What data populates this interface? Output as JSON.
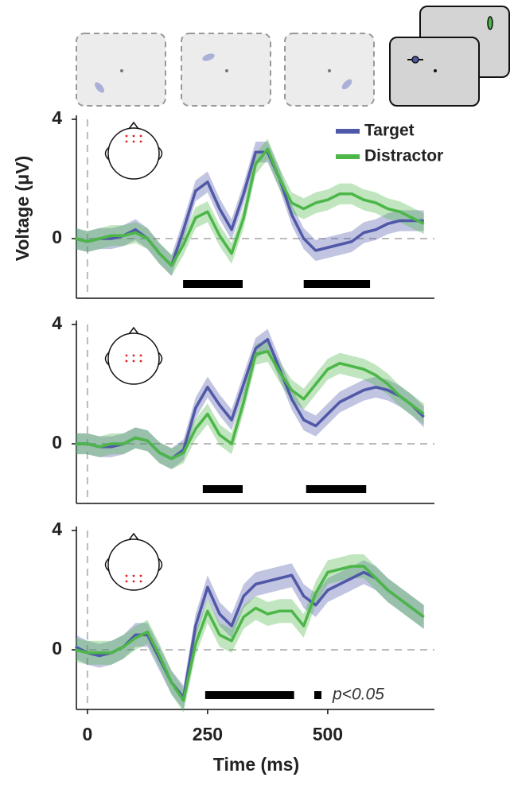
{
  "chart_data": [
    {
      "type": "line",
      "ylabel": "Voltage (μV)",
      "legend": "upper right",
      "xlim": [
        -23,
        722
      ],
      "ylim": [
        -2,
        4
      ],
      "yticks": [
        0,
        4
      ],
      "x": [
        -25,
        0,
        25,
        50,
        75,
        100,
        125,
        150,
        175,
        200,
        225,
        250,
        275,
        300,
        325,
        350,
        375,
        400,
        425,
        450,
        475,
        500,
        525,
        550,
        575,
        600,
        625,
        650,
        675,
        700
      ],
      "series": [
        {
          "name": "Target",
          "color": "#5058a8",
          "error": 0.35,
          "values": [
            0,
            -0.1,
            0,
            0,
            0.1,
            0.3,
            0,
            -0.5,
            -0.9,
            0.3,
            1.6,
            1.9,
            1.0,
            0.3,
            1.5,
            2.9,
            2.9,
            2.0,
            0.8,
            0,
            -0.4,
            -0.3,
            -0.2,
            -0.1,
            0.2,
            0.3,
            0.5,
            0.6,
            0.6,
            0.6
          ]
        },
        {
          "name": "Distractor",
          "color": "#4cb648",
          "error": 0.35,
          "values": [
            0,
            -0.1,
            0,
            0.1,
            0.1,
            0.2,
            0,
            -0.5,
            -0.9,
            -0.2,
            0.7,
            0.9,
            0.1,
            -0.5,
            0.7,
            2.5,
            3.0,
            2.0,
            1.2,
            1.0,
            1.2,
            1.3,
            1.5,
            1.5,
            1.3,
            1.2,
            1.0,
            0.9,
            0.7,
            0.5
          ]
        }
      ],
      "significance": [
        [
          199,
          323
        ],
        [
          450,
          588
        ]
      ]
    },
    {
      "type": "line",
      "xlim": [
        -23,
        722
      ],
      "ylim": [
        -2,
        4
      ],
      "yticks": [
        0,
        4
      ],
      "x": [
        -25,
        0,
        25,
        50,
        75,
        100,
        125,
        150,
        175,
        200,
        225,
        250,
        275,
        300,
        325,
        350,
        375,
        400,
        425,
        450,
        475,
        500,
        525,
        550,
        575,
        600,
        625,
        650,
        675,
        700
      ],
      "series": [
        {
          "color": "#5058a8",
          "error": 0.35,
          "values": [
            0,
            0,
            -0.1,
            -0.1,
            0,
            0.2,
            0.1,
            -0.3,
            -0.5,
            -0.2,
            1.2,
            1.9,
            1.3,
            0.8,
            2.0,
            3.2,
            3.5,
            2.5,
            1.5,
            0.8,
            0.6,
            1.0,
            1.4,
            1.6,
            1.8,
            1.9,
            1.8,
            1.6,
            1.3,
            0.9
          ]
        },
        {
          "color": "#4cb648",
          "error": 0.35,
          "values": [
            0,
            0,
            -0.1,
            0,
            0,
            0.2,
            0.1,
            -0.3,
            -0.5,
            -0.3,
            0.5,
            1.0,
            0.3,
            0,
            1.4,
            3.0,
            3.1,
            2.4,
            1.8,
            1.5,
            2.0,
            2.5,
            2.7,
            2.6,
            2.5,
            2.3,
            2.0,
            1.6,
            1.3,
            1.0
          ]
        }
      ],
      "significance": [
        [
          240,
          323
        ],
        [
          455,
          580
        ]
      ]
    },
    {
      "type": "line",
      "xlabel": "Time (ms)",
      "xlim": [
        -23,
        722
      ],
      "ylim": [
        -2,
        4
      ],
      "xticks": [
        0,
        250,
        500
      ],
      "yticks": [
        0,
        4
      ],
      "x": [
        -25,
        0,
        25,
        50,
        75,
        100,
        125,
        150,
        175,
        200,
        225,
        250,
        275,
        300,
        325,
        350,
        375,
        400,
        425,
        450,
        475,
        500,
        525,
        550,
        575,
        600,
        625,
        650,
        675,
        700
      ],
      "series": [
        {
          "color": "#5058a8",
          "error": 0.4,
          "values": [
            0.1,
            -0.1,
            -0.2,
            -0.1,
            0.1,
            0.5,
            0.5,
            -0.3,
            -1.1,
            -1.6,
            0.8,
            2.1,
            1.2,
            0.8,
            1.8,
            2.2,
            2.3,
            2.4,
            2.5,
            1.8,
            1.5,
            2.0,
            2.2,
            2.4,
            2.6,
            2.4,
            2.0,
            1.7,
            1.4,
            1.1
          ]
        },
        {
          "color": "#4cb648",
          "error": 0.4,
          "values": [
            0,
            -0.1,
            -0.1,
            -0.1,
            0.1,
            0.4,
            0.6,
            -0.2,
            -1.1,
            -1.7,
            0.2,
            1.3,
            0.5,
            0.3,
            1.1,
            1.4,
            1.2,
            1.3,
            1.3,
            0.8,
            1.9,
            2.6,
            2.7,
            2.8,
            2.8,
            2.4,
            2.0,
            1.7,
            1.4,
            1.1
          ]
        }
      ],
      "significance": [
        [
          245,
          430
        ]
      ],
      "significance_label": "p<0.05"
    }
  ]
}
